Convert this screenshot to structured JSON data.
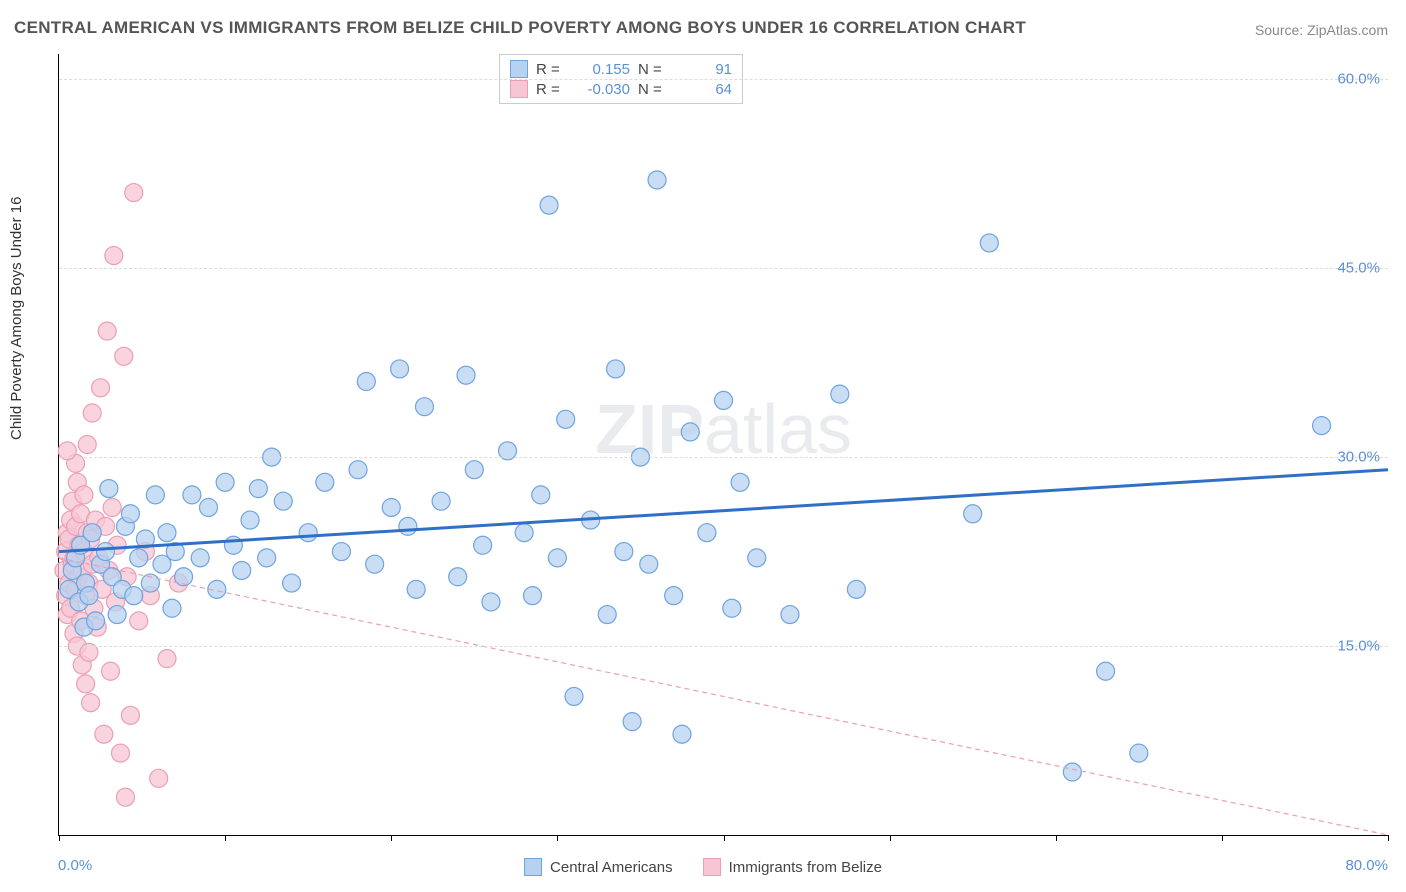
{
  "title": "CENTRAL AMERICAN VS IMMIGRANTS FROM BELIZE CHILD POVERTY AMONG BOYS UNDER 16 CORRELATION CHART",
  "source": "Source: ZipAtlas.com",
  "watermark_bold": "ZIP",
  "watermark_rest": "atlas",
  "y_axis_label": "Child Poverty Among Boys Under 16",
  "chart": {
    "type": "scatter",
    "xlim": [
      0,
      80
    ],
    "ylim": [
      0,
      62
    ],
    "x_ticks": [
      0,
      10,
      20,
      30,
      40,
      50,
      60,
      70,
      80
    ],
    "x_tick_labels_shown": {
      "0": "0.0%",
      "80": "80.0%"
    },
    "y_ticks": [
      15,
      30,
      45,
      60
    ],
    "y_tick_labels": [
      "15.0%",
      "30.0%",
      "45.0%",
      "60.0%"
    ],
    "grid_color": "#dddddd",
    "background_color": "#ffffff",
    "axis_color": "#000000",
    "marker_radius": 9,
    "marker_stroke_width": 1.2,
    "series": [
      {
        "name": "Central Americans",
        "color_fill": "#b7d2f0",
        "color_stroke": "#6fa4de",
        "trend": {
          "y_at_x0": 22.5,
          "y_at_xmax": 29.0,
          "stroke": "#2f6fc7",
          "width": 3,
          "dash": ""
        },
        "R": "0.155",
        "N": "91",
        "points": [
          [
            0.6,
            19.5
          ],
          [
            0.8,
            21.0
          ],
          [
            1.0,
            22.0
          ],
          [
            1.2,
            18.5
          ],
          [
            1.3,
            23.0
          ],
          [
            1.5,
            16.5
          ],
          [
            1.6,
            20.0
          ],
          [
            1.8,
            19.0
          ],
          [
            2.0,
            24.0
          ],
          [
            2.2,
            17.0
          ],
          [
            2.5,
            21.5
          ],
          [
            2.8,
            22.5
          ],
          [
            3.0,
            27.5
          ],
          [
            3.2,
            20.5
          ],
          [
            3.5,
            17.5
          ],
          [
            3.8,
            19.5
          ],
          [
            4.0,
            24.5
          ],
          [
            4.3,
            25.5
          ],
          [
            4.5,
            19.0
          ],
          [
            4.8,
            22.0
          ],
          [
            5.2,
            23.5
          ],
          [
            5.5,
            20.0
          ],
          [
            5.8,
            27.0
          ],
          [
            6.2,
            21.5
          ],
          [
            6.5,
            24.0
          ],
          [
            7.0,
            22.5
          ],
          [
            7.5,
            20.5
          ],
          [
            8.0,
            27.0
          ],
          [
            8.5,
            22.0
          ],
          [
            9.0,
            26.0
          ],
          [
            9.5,
            19.5
          ],
          [
            10.0,
            28.0
          ],
          [
            10.5,
            23.0
          ],
          [
            11.0,
            21.0
          ],
          [
            11.5,
            25.0
          ],
          [
            12.0,
            27.5
          ],
          [
            12.5,
            22.0
          ],
          [
            13.5,
            26.5
          ],
          [
            14.0,
            20.0
          ],
          [
            15.0,
            24.0
          ],
          [
            16.0,
            28.0
          ],
          [
            17.0,
            22.5
          ],
          [
            18.0,
            29.0
          ],
          [
            18.5,
            36.0
          ],
          [
            19.0,
            21.5
          ],
          [
            20.0,
            26.0
          ],
          [
            20.5,
            37.0
          ],
          [
            21.0,
            24.5
          ],
          [
            21.5,
            19.5
          ],
          [
            22.0,
            34.0
          ],
          [
            23.0,
            26.5
          ],
          [
            24.0,
            20.5
          ],
          [
            24.5,
            36.5
          ],
          [
            25.0,
            29.0
          ],
          [
            25.5,
            23.0
          ],
          [
            26.0,
            18.5
          ],
          [
            27.0,
            30.5
          ],
          [
            28.0,
            24.0
          ],
          [
            28.5,
            19.0
          ],
          [
            29.0,
            27.0
          ],
          [
            29.5,
            50.0
          ],
          [
            30.0,
            22.0
          ],
          [
            30.5,
            33.0
          ],
          [
            31.0,
            11.0
          ],
          [
            32.0,
            25.0
          ],
          [
            33.0,
            17.5
          ],
          [
            33.5,
            37.0
          ],
          [
            34.0,
            22.5
          ],
          [
            34.5,
            9.0
          ],
          [
            35.0,
            30.0
          ],
          [
            35.5,
            21.5
          ],
          [
            36.0,
            52.0
          ],
          [
            37.0,
            19.0
          ],
          [
            37.5,
            8.0
          ],
          [
            38.0,
            32.0
          ],
          [
            39.0,
            24.0
          ],
          [
            40.0,
            34.5
          ],
          [
            40.5,
            18.0
          ],
          [
            41.0,
            28.0
          ],
          [
            42.0,
            22.0
          ],
          [
            44.0,
            17.5
          ],
          [
            47.0,
            35.0
          ],
          [
            48.0,
            19.5
          ],
          [
            55.0,
            25.5
          ],
          [
            56.0,
            47.0
          ],
          [
            61.0,
            5.0
          ],
          [
            63.0,
            13.0
          ],
          [
            65.0,
            6.5
          ],
          [
            76.0,
            32.5
          ],
          [
            12.8,
            30.0
          ],
          [
            6.8,
            18.0
          ]
        ]
      },
      {
        "name": "Immigrants from Belize",
        "color_fill": "#f7c6d4",
        "color_stroke": "#ea9fb4",
        "trend": {
          "y_at_x0": 22.0,
          "y_at_xmax": 0.0,
          "stroke": "#ea9fb4",
          "width": 1.2,
          "dash": "5,4"
        },
        "R": "-0.030",
        "N": "64",
        "points": [
          [
            0.3,
            21.0
          ],
          [
            0.4,
            22.5
          ],
          [
            0.4,
            19.0
          ],
          [
            0.5,
            24.0
          ],
          [
            0.5,
            17.5
          ],
          [
            0.6,
            23.5
          ],
          [
            0.6,
            20.0
          ],
          [
            0.7,
            25.0
          ],
          [
            0.7,
            18.0
          ],
          [
            0.8,
            21.5
          ],
          [
            0.8,
            26.5
          ],
          [
            0.9,
            16.0
          ],
          [
            0.9,
            22.0
          ],
          [
            1.0,
            19.5
          ],
          [
            1.0,
            24.5
          ],
          [
            1.1,
            28.0
          ],
          [
            1.1,
            15.0
          ],
          [
            1.2,
            20.5
          ],
          [
            1.2,
            23.0
          ],
          [
            1.3,
            17.0
          ],
          [
            1.3,
            25.5
          ],
          [
            1.4,
            21.0
          ],
          [
            1.4,
            13.5
          ],
          [
            1.5,
            22.5
          ],
          [
            1.5,
            27.0
          ],
          [
            1.6,
            19.0
          ],
          [
            1.6,
            12.0
          ],
          [
            1.7,
            24.0
          ],
          [
            1.7,
            31.0
          ],
          [
            1.8,
            20.0
          ],
          [
            1.8,
            14.5
          ],
          [
            1.9,
            23.5
          ],
          [
            1.9,
            10.5
          ],
          [
            2.0,
            21.5
          ],
          [
            2.0,
            33.5
          ],
          [
            2.1,
            18.0
          ],
          [
            2.2,
            25.0
          ],
          [
            2.3,
            16.5
          ],
          [
            2.4,
            22.0
          ],
          [
            2.5,
            35.5
          ],
          [
            2.6,
            19.5
          ],
          [
            2.7,
            8.0
          ],
          [
            2.8,
            24.5
          ],
          [
            2.9,
            40.0
          ],
          [
            3.0,
            21.0
          ],
          [
            3.1,
            13.0
          ],
          [
            3.2,
            26.0
          ],
          [
            3.3,
            46.0
          ],
          [
            3.4,
            18.5
          ],
          [
            3.5,
            23.0
          ],
          [
            3.7,
            6.5
          ],
          [
            3.9,
            38.0
          ],
          [
            4.1,
            20.5
          ],
          [
            4.3,
            9.5
          ],
          [
            4.5,
            51.0
          ],
          [
            4.8,
            17.0
          ],
          [
            5.2,
            22.5
          ],
          [
            5.5,
            19.0
          ],
          [
            6.0,
            4.5
          ],
          [
            6.5,
            14.0
          ],
          [
            7.2,
            20.0
          ],
          [
            4.0,
            3.0
          ],
          [
            1.0,
            29.5
          ],
          [
            0.5,
            30.5
          ]
        ]
      }
    ]
  },
  "stats_box": {
    "rows": [
      {
        "swatch_fill": "#b7d2f0",
        "swatch_stroke": "#6fa4de",
        "R_label": "R =",
        "R": "0.155",
        "N_label": "N =",
        "N": "91"
      },
      {
        "swatch_fill": "#f7c6d4",
        "swatch_stroke": "#ea9fb4",
        "R_label": "R =",
        "R": "-0.030",
        "N_label": "N =",
        "N": "64"
      }
    ]
  },
  "legend": {
    "items": [
      {
        "swatch_fill": "#b7d2f0",
        "swatch_stroke": "#6fa4de",
        "label": "Central Americans"
      },
      {
        "swatch_fill": "#f7c6d4",
        "swatch_stroke": "#ea9fb4",
        "label": "Immigrants from Belize"
      }
    ]
  },
  "colors": {
    "title": "#555555",
    "source": "#888888",
    "tick_label": "#5b8fd6",
    "watermark": "#d0d5da"
  }
}
